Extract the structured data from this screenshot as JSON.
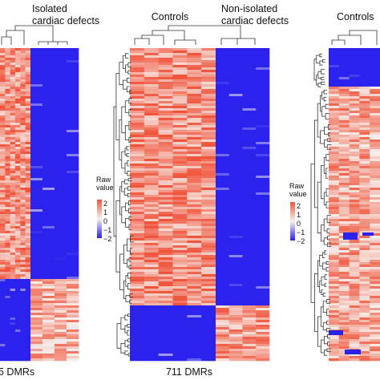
{
  "colors": {
    "high": "#f0543b",
    "mid": "#f7f0ec",
    "low": "#2b22ee",
    "tree": "#333333"
  },
  "chart_data": [
    {
      "type": "heatmap",
      "group_labels": [
        "",
        "Isolated\ncardiac defects"
      ],
      "dmr_label": "5 DMRs",
      "block_pattern": [
        {
          "row_fraction": 0.74,
          "values": [
            1.2,
            -2.0
          ]
        },
        {
          "row_fraction": 0.26,
          "values": [
            -2.0,
            0.8
          ]
        }
      ]
    },
    {
      "type": "heatmap",
      "group_labels": [
        "Controls",
        "Non-isolated\ncardiac defects"
      ],
      "dmr_label": "711 DMRs",
      "block_pattern": [
        {
          "row_fraction": 0.82,
          "values": [
            1.2,
            -2.0
          ]
        },
        {
          "row_fraction": 0.18,
          "values": [
            -2.0,
            1.0
          ]
        }
      ]
    },
    {
      "type": "heatmap",
      "group_labels": [
        "Controls"
      ],
      "dmr_label": "",
      "block_pattern": [
        {
          "row_fraction": 0.12,
          "values": [
            -2.0
          ]
        },
        {
          "row_fraction": 0.88,
          "values": [
            0.9
          ]
        }
      ]
    }
  ],
  "legends": [
    {
      "title": "Raw\nvalue",
      "ticks": [
        "2",
        "1",
        "0",
        "−1",
        "−2"
      ]
    },
    {
      "title": "Raw\nvalue",
      "ticks": [
        "2",
        "1",
        "0",
        "−1",
        "−2"
      ]
    }
  ]
}
